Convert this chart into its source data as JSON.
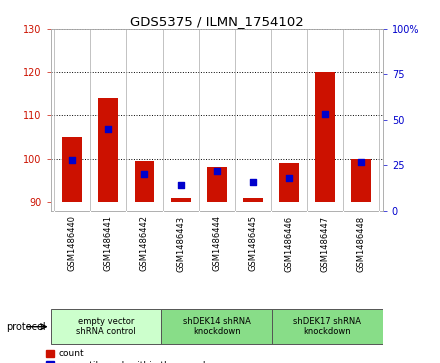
{
  "title": "GDS5375 / ILMN_1754102",
  "samples": [
    "GSM1486440",
    "GSM1486441",
    "GSM1486442",
    "GSM1486443",
    "GSM1486444",
    "GSM1486445",
    "GSM1486446",
    "GSM1486447",
    "GSM1486448"
  ],
  "count_values": [
    105,
    114,
    99.5,
    91,
    98,
    91,
    99,
    120,
    100
  ],
  "count_base": [
    90,
    90,
    90,
    90,
    90,
    90,
    90,
    90,
    90
  ],
  "percentile_values": [
    28,
    45,
    20,
    14,
    22,
    16,
    18,
    53,
    27
  ],
  "ylim_left": [
    88,
    130
  ],
  "ylim_right": [
    0,
    100
  ],
  "yticks_left": [
    90,
    100,
    110,
    120,
    130
  ],
  "yticks_right": [
    0,
    25,
    50,
    75,
    100
  ],
  "bar_color": "#cc1100",
  "dot_color": "#0000cc",
  "bg_color": "#ffffff",
  "plot_bg": "#ffffff",
  "tick_bg_color": "#cccccc",
  "group_colors": [
    "#ccffcc",
    "#88dd88",
    "#88dd88"
  ],
  "group_ranges": [
    [
      0,
      3
    ],
    [
      3,
      6
    ],
    [
      6,
      9
    ]
  ],
  "group_labels": [
    "empty vector\nshRNA control",
    "shDEK14 shRNA\nknockdown",
    "shDEK17 shRNA\nknockdown"
  ],
  "bar_width": 0.55,
  "dot_size": 18,
  "grid_ticks": [
    100,
    110,
    120,
    130
  ]
}
